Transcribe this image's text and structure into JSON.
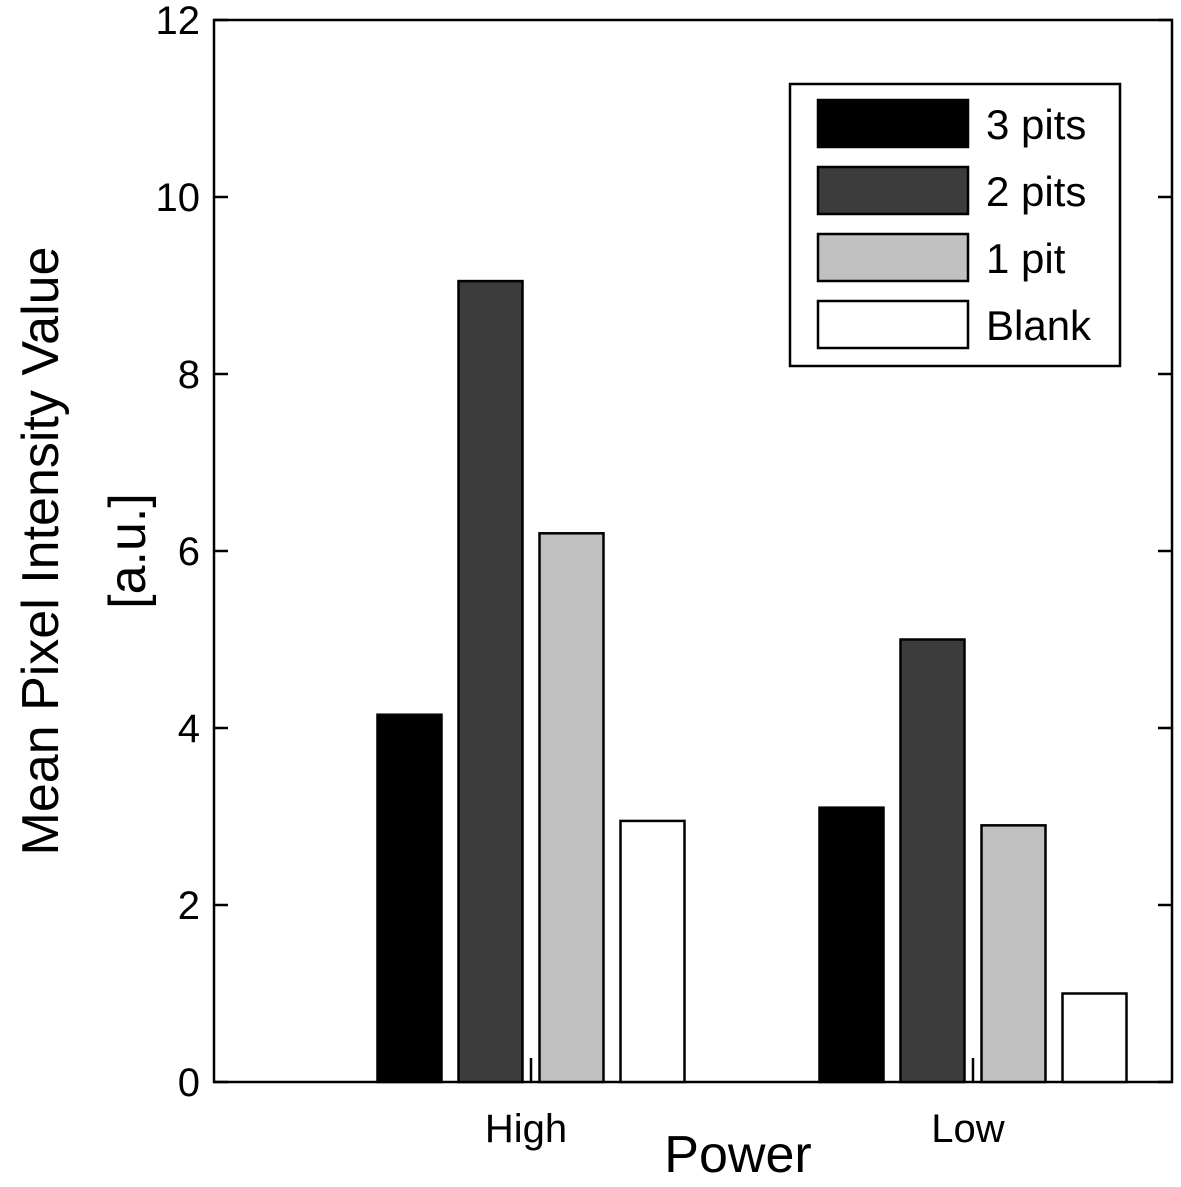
{
  "chart_data": {
    "type": "bar",
    "categories": [
      "High",
      "Low"
    ],
    "series": [
      {
        "name": "3 pits",
        "values": [
          4.15,
          3.1
        ],
        "color": "#000000"
      },
      {
        "name": "2 pits",
        "values": [
          9.05,
          5.0
        ],
        "color": "#3c3c3c"
      },
      {
        "name": "1 pit",
        "values": [
          6.2,
          2.9
        ],
        "color": "#c0c0c0"
      },
      {
        "name": "Blank",
        "values": [
          2.95,
          1.0
        ],
        "color": "#ffffff"
      }
    ],
    "xlabel": "Power",
    "ylabel_line1": "Mean Pixel Intensity Value",
    "ylabel_line2": "[a.u.]",
    "ylim": [
      0,
      12
    ],
    "yticks": [
      "0",
      "2",
      "4",
      "6",
      "8",
      "10",
      "12"
    ],
    "grid": false,
    "legend_position": "top-right"
  }
}
